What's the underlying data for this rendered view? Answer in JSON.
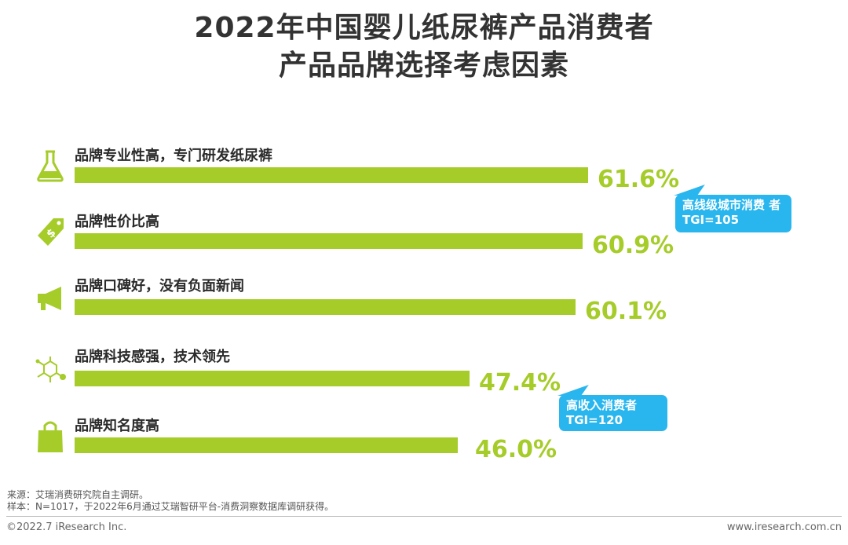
{
  "title_line1": "2022年中国婴儿纸尿裤产品消费者",
  "title_line2": "产品品牌选择考虑因素",
  "chart_data": {
    "type": "bar",
    "orientation": "horizontal",
    "categories": [
      "品牌专业性高，专门研发纸尿裤",
      "品牌性价比高",
      "品牌口碑好，没有负面新闻",
      "品牌科技感强，技术领先",
      "品牌知名度高"
    ],
    "values": [
      61.6,
      60.9,
      60.1,
      47.4,
      46.0
    ],
    "value_labels": [
      "61.6%",
      "60.9%",
      "60.1%",
      "47.4%",
      "46.0%"
    ],
    "icons": [
      "flask-icon",
      "price-tag-icon",
      "megaphone-icon",
      "molecule-icon",
      "shopping-bag-icon"
    ],
    "unit": "%",
    "color": "#a6cc2a",
    "xlim": [
      0,
      61.6
    ],
    "grid": false,
    "legend": "none"
  },
  "callouts": [
    {
      "line1": "高线级城市消费 者",
      "line2": "TGI=105"
    },
    {
      "line1": "高收入消费者",
      "line2": "TGI=120"
    }
  ],
  "footer": {
    "source": "来源：艾瑞消费研究院自主调研。",
    "sample": "样本：N=1017，于2022年6月通过艾瑞智研平台-消费洞察数据库调研获得。",
    "copyright": "©2022.7 iResearch Inc.",
    "website": "www.iresearch.com.cn"
  },
  "colors": {
    "bar": "#a6cc2a",
    "callout": "#29b6ee",
    "title": "#333333"
  }
}
